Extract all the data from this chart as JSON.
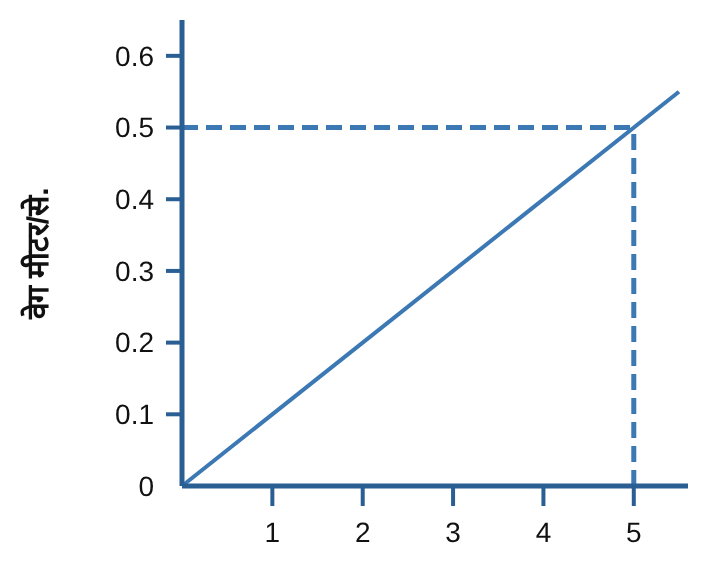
{
  "chart_data": {
    "type": "line",
    "ylabel": "वेग मीटर/से.",
    "x": [
      0,
      5.5
    ],
    "series": [
      {
        "color": "#3b78b4",
        "values": [
          0,
          0.55
        ]
      }
    ],
    "xlim": [
      0,
      5.6
    ],
    "ylim": [
      0,
      0.65
    ],
    "xticks": [
      1,
      2,
      3,
      4,
      5
    ],
    "yticks": [
      0,
      0.1,
      0.2,
      0.3,
      0.4,
      0.5,
      0.6
    ],
    "marker": "none",
    "line_style": "solid",
    "ref_lines": [
      {
        "axis": "x",
        "value": 5,
        "color": "#3b78b4",
        "line_style": "dashed"
      },
      {
        "axis": "y",
        "value": 0.5,
        "color": "#3b78b4",
        "line_style": "dashed"
      }
    ]
  }
}
